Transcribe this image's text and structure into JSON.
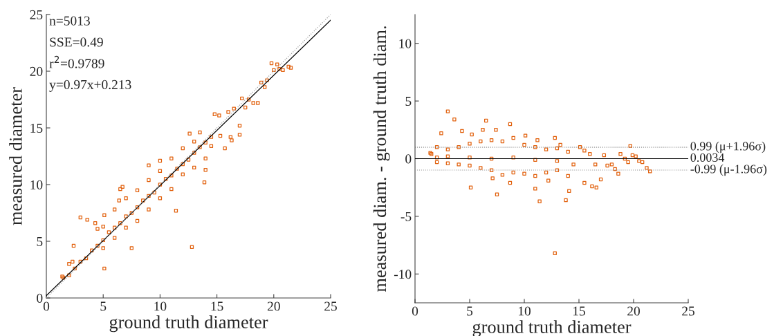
{
  "chart_data": [
    {
      "type": "scatter",
      "xlabel": "ground truth diameter",
      "ylabel": "measured diameter",
      "xlim": [
        0,
        25
      ],
      "ylim": [
        0,
        25
      ],
      "xticks": [
        0,
        5,
        10,
        15,
        20,
        25
      ],
      "yticks": [
        0,
        5,
        10,
        15,
        20,
        25
      ],
      "grid": false,
      "annotations": [
        "n=5013",
        "SSE=0.49",
        "r$^{2}$=0.9789",
        "y=0.97x+0.213"
      ],
      "series": [
        {
          "marker": "square",
          "color": "#e2620f",
          "x": [
            1.4,
            1.5,
            2,
            2.3,
            2.4,
            3,
            3.6,
            4.3,
            5.1,
            5.1,
            6.4,
            6.5,
            6.7,
            7.5,
            9,
            10,
            11.4,
            12.8,
            13.9,
            14,
            12.6,
            13.5,
            15.2,
            16,
            16.5,
            16.2,
            17,
            17,
            17.2,
            17.5,
            17.8,
            18.2,
            18.6,
            18.9,
            19.2,
            19.4,
            19.8,
            20,
            20.3,
            20.5,
            20.8,
            21.3,
            21.5,
            14.8,
            15.7,
            16.3,
            15.3,
            2,
            2.5,
            3,
            3.5,
            4,
            4.5,
            5,
            5.5,
            6,
            6.5,
            7,
            7.5,
            8,
            8.5,
            9,
            9.5,
            10,
            10.5,
            11,
            11.5,
            12,
            12.5,
            13,
            13.5,
            14,
            14.5,
            4.5,
            5,
            6,
            7,
            8,
            9,
            10,
            11,
            12,
            13,
            5,
            6,
            7,
            8,
            9,
            10,
            11,
            12,
            13,
            14,
            14.5
          ],
          "values": [
            1.9,
            1.8,
            3,
            3.2,
            4.6,
            7.1,
            6.9,
            6.6,
            2.6,
            7.3,
            8.6,
            9.6,
            9.8,
            4.4,
            11.7,
            12.1,
            7.7,
            4.5,
            10.2,
            11.3,
            14.5,
            14.6,
            16.1,
            16.4,
            16.7,
            14.2,
            15.2,
            14.4,
            17.6,
            16.8,
            17.5,
            17.2,
            17.2,
            19,
            18.6,
            19.2,
            20.7,
            20.1,
            20.6,
            20.2,
            20.1,
            20.4,
            20.3,
            16.2,
            13.2,
            13.9,
            14.3,
            2,
            2.6,
            3.2,
            3.5,
            4.2,
            4.6,
            5.1,
            5.8,
            6.2,
            6.6,
            7.2,
            7.5,
            8,
            8.6,
            9,
            9.3,
            10,
            10.5,
            10.8,
            11.4,
            11.8,
            12.2,
            12.8,
            13.3,
            13.7,
            14.2,
            6.1,
            6.3,
            7.8,
            8.8,
            9.5,
            10.4,
            11.2,
            12.3,
            13.2,
            13.8,
            4.4,
            5.3,
            6.2,
            6.8,
            7.8,
            8.8,
            9.6,
            10.9,
            11.5,
            12.3,
            13.4
          ]
        },
        {
          "type": "line",
          "color": "#000000",
          "line_style": "solid",
          "x": [
            0,
            25
          ],
          "values": [
            0.2,
            24.5
          ]
        },
        {
          "type": "line",
          "color": "#a0a0a0",
          "line_style": "dotted",
          "x": [
            0,
            25
          ],
          "values": [
            0,
            25
          ]
        }
      ]
    },
    {
      "type": "scatter",
      "xlabel": "ground truth diameter",
      "ylabel": "measured diam. - ground truth diam.",
      "xlim": [
        0,
        25
      ],
      "ylim": [
        -12.5,
        12.5
      ],
      "xticks": [
        0,
        5,
        10,
        15,
        20,
        25
      ],
      "yticks": [
        -10,
        -5,
        0,
        5,
        10
      ],
      "grid": false,
      "ref_lines": [
        {
          "axis": "y",
          "value": 0.99,
          "label": "0.99 (μ+1.96σ)",
          "color": "#606060",
          "line_style": "dotted"
        },
        {
          "axis": "y",
          "value": 0.0034,
          "label": "0.0034",
          "color": "#000000",
          "line_style": "solid"
        },
        {
          "axis": "y",
          "value": -0.99,
          "label": "-0.99 (μ-1.96σ)",
          "color": "#909090",
          "line_style": "dotted"
        }
      ],
      "series": [
        {
          "marker": "square",
          "color": "#e2620f",
          "x": [
            3,
            3.6,
            6.5,
            8.7,
            2.4,
            4.3,
            5.2,
            7.4,
            6.2,
            5.1,
            7.5,
            11.4,
            12.8,
            13.8,
            14.1,
            11,
            8.7,
            12.2,
            1.4,
            1.5,
            10.1,
            11.2,
            12.8,
            13.3,
            15.1,
            15.5,
            16,
            16.5,
            16.6,
            17,
            16.2,
            15.5,
            17.3,
            17.6,
            18,
            18.3,
            18.6,
            18.8,
            19.2,
            19.5,
            19.7,
            19.9,
            20.2,
            20.5,
            20.8,
            21.2,
            21.5,
            2,
            2,
            2,
            3,
            3,
            4,
            4,
            5,
            5,
            6,
            6,
            7,
            7,
            7.1,
            8,
            8,
            9,
            9,
            10,
            10,
            11,
            11,
            12,
            12,
            13,
            13,
            14,
            14,
            3,
            5,
            7,
            9,
            11,
            13,
            14.5
          ],
          "values": [
            4.1,
            3.4,
            3.3,
            3,
            2.2,
            2.4,
            2.1,
            2.5,
            2.5,
            -2.5,
            -3.1,
            -3.7,
            -8.2,
            -3.6,
            -2.8,
            -2.6,
            -2.1,
            -1.9,
            0.5,
            0.4,
            2,
            1.6,
            1.8,
            1.2,
            1,
            0.7,
            0.4,
            -0.5,
            -2.5,
            -1.8,
            -2.4,
            -2.1,
            0.3,
            -0.6,
            -0.5,
            -0.9,
            -1.3,
            0.4,
            0,
            -0.3,
            1.1,
            0.3,
            0.2,
            -0.2,
            -0.3,
            -0.8,
            -1.1,
            0.1,
            1,
            -0.3,
            0.8,
            -0.4,
            1,
            -0.5,
            1.3,
            -0.6,
            1.5,
            -0.8,
            1.6,
            -1,
            -1.7,
            1.5,
            -1.4,
            1.8,
            -1.2,
            1.2,
            -1.3,
            1,
            -1.5,
            0.8,
            -1.2,
            0.9,
            -1,
            0.6,
            -1.5,
            0.2,
            0.1,
            0,
            0.1,
            -0.1,
            -0.2,
            -0.5
          ]
        }
      ]
    }
  ]
}
